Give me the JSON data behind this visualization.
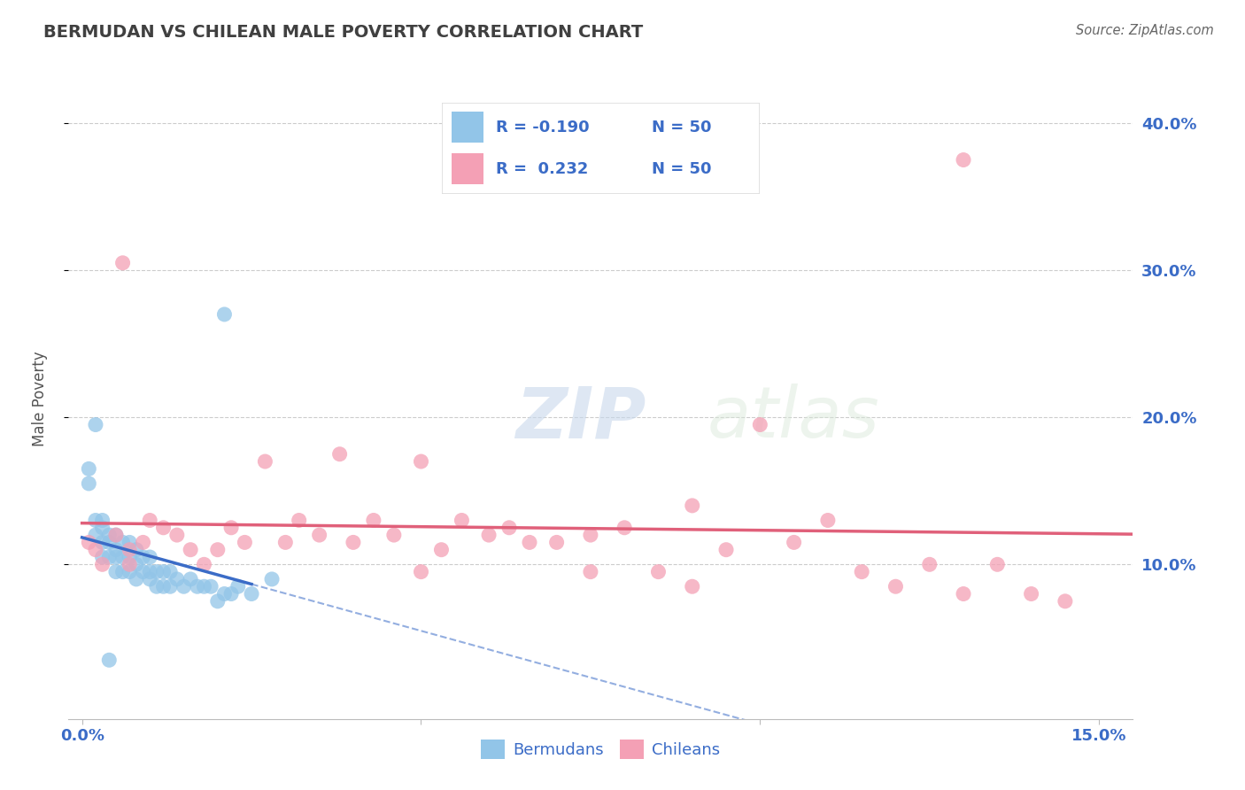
{
  "title": "BERMUDAN VS CHILEAN MALE POVERTY CORRELATION CHART",
  "source": "Source: ZipAtlas.com",
  "ylabel": "Male Poverty",
  "xlim": [
    -0.002,
    0.155
  ],
  "ylim": [
    -0.005,
    0.43
  ],
  "x_ticks": [
    0.0,
    0.05,
    0.1,
    0.15
  ],
  "x_tick_labels": [
    "0.0%",
    "",
    "",
    "15.0%"
  ],
  "y_ticks_right": [
    0.1,
    0.2,
    0.3,
    0.4
  ],
  "y_tick_labels_right": [
    "10.0%",
    "20.0%",
    "30.0%",
    "40.0%"
  ],
  "bermudan_color": "#92C5E8",
  "chilean_color": "#F4A0B5",
  "bermudan_line_color": "#3B6CC7",
  "chilean_line_color": "#E0607A",
  "bermudan_R": -0.19,
  "chilean_R": 0.232,
  "N": 50,
  "legend_label_bermudan": "Bermudans",
  "legend_label_chilean": "Chileans",
  "legend_text_color": "#3B6CC7",
  "bermudan_x": [
    0.001,
    0.001,
    0.002,
    0.002,
    0.002,
    0.003,
    0.003,
    0.003,
    0.003,
    0.004,
    0.004,
    0.004,
    0.005,
    0.005,
    0.005,
    0.005,
    0.006,
    0.006,
    0.006,
    0.007,
    0.007,
    0.007,
    0.008,
    0.008,
    0.008,
    0.009,
    0.009,
    0.01,
    0.01,
    0.01,
    0.011,
    0.011,
    0.012,
    0.012,
    0.013,
    0.013,
    0.014,
    0.015,
    0.016,
    0.017,
    0.018,
    0.019,
    0.02,
    0.021,
    0.022,
    0.023,
    0.025,
    0.028,
    0.021,
    0.004
  ],
  "bermudan_y": [
    0.165,
    0.155,
    0.13,
    0.12,
    0.195,
    0.125,
    0.115,
    0.13,
    0.105,
    0.115,
    0.12,
    0.105,
    0.12,
    0.11,
    0.105,
    0.095,
    0.115,
    0.105,
    0.095,
    0.115,
    0.105,
    0.095,
    0.11,
    0.1,
    0.09,
    0.105,
    0.095,
    0.105,
    0.095,
    0.09,
    0.095,
    0.085,
    0.095,
    0.085,
    0.095,
    0.085,
    0.09,
    0.085,
    0.09,
    0.085,
    0.085,
    0.085,
    0.075,
    0.08,
    0.08,
    0.085,
    0.08,
    0.09,
    0.27,
    0.035
  ],
  "chilean_x": [
    0.001,
    0.002,
    0.003,
    0.005,
    0.006,
    0.007,
    0.009,
    0.01,
    0.012,
    0.014,
    0.016,
    0.018,
    0.02,
    0.022,
    0.024,
    0.027,
    0.03,
    0.032,
    0.035,
    0.038,
    0.04,
    0.043,
    0.046,
    0.05,
    0.053,
    0.056,
    0.06,
    0.063,
    0.066,
    0.07,
    0.075,
    0.08,
    0.085,
    0.09,
    0.095,
    0.1,
    0.105,
    0.11,
    0.115,
    0.12,
    0.125,
    0.13,
    0.135,
    0.14,
    0.145,
    0.13,
    0.075,
    0.09,
    0.007,
    0.05
  ],
  "chilean_y": [
    0.115,
    0.11,
    0.1,
    0.12,
    0.305,
    0.11,
    0.115,
    0.13,
    0.125,
    0.12,
    0.11,
    0.1,
    0.11,
    0.125,
    0.115,
    0.17,
    0.115,
    0.13,
    0.12,
    0.175,
    0.115,
    0.13,
    0.12,
    0.095,
    0.11,
    0.13,
    0.12,
    0.125,
    0.115,
    0.115,
    0.12,
    0.125,
    0.095,
    0.14,
    0.11,
    0.195,
    0.115,
    0.13,
    0.095,
    0.085,
    0.1,
    0.08,
    0.1,
    0.08,
    0.075,
    0.375,
    0.095,
    0.085,
    0.1,
    0.17
  ],
  "watermark_zip": "ZIP",
  "watermark_atlas": "atlas",
  "grid_color": "#CCCCCC",
  "title_color": "#404040",
  "tick_label_color": "#3B6CC7"
}
